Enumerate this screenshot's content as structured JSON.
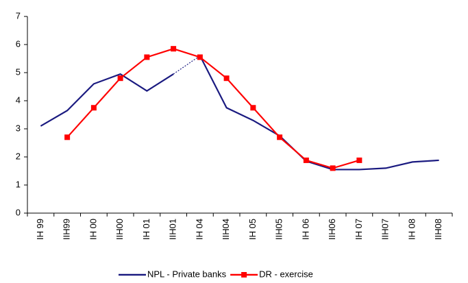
{
  "chart_data": {
    "type": "line",
    "categories": [
      "IH 99",
      "IIH99",
      "IH 00",
      "IIH00",
      "IH 01",
      "IIH01",
      "IH 04",
      "IIH04",
      "IH 05",
      "IIH05",
      "IH 06",
      "IIH06",
      "IH 07",
      "IIH07",
      "IH 08",
      "IIH08"
    ],
    "series": [
      {
        "name": "NPL - Private banks",
        "color": "#1a1a80",
        "marker": "none",
        "dashed_segment": [
          5,
          6
        ],
        "values": [
          3.1,
          3.65,
          4.6,
          4.95,
          4.35,
          4.95,
          5.6,
          3.75,
          3.3,
          2.75,
          1.85,
          1.55,
          1.55,
          1.6,
          1.82,
          1.88
        ]
      },
      {
        "name": "DR - exercise",
        "color": "#ff0000",
        "marker": "square",
        "values": [
          null,
          2.7,
          3.75,
          4.8,
          5.55,
          5.85,
          5.55,
          4.8,
          3.75,
          2.7,
          1.88,
          1.6,
          1.88,
          null,
          null,
          null
        ]
      }
    ],
    "ylim": [
      0,
      7
    ],
    "yticks": [
      0,
      1,
      2,
      3,
      4,
      5,
      6,
      7
    ],
    "grid": false,
    "legend": "bottom"
  }
}
